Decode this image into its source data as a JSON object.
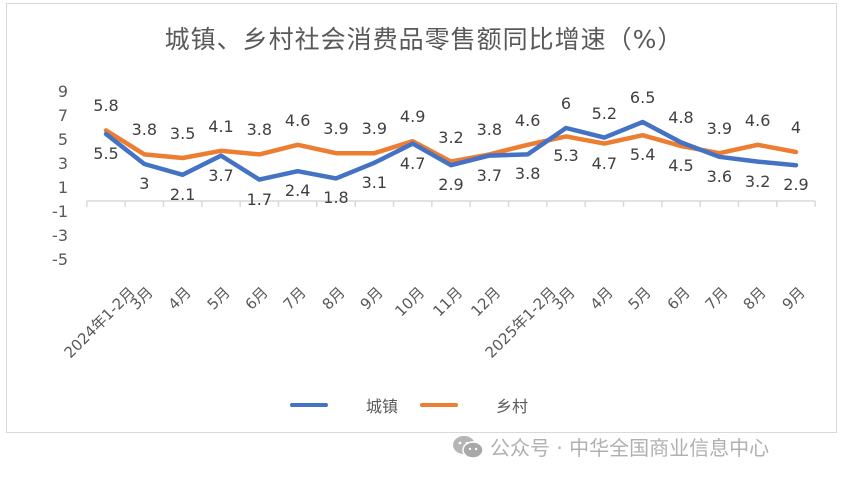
{
  "chart_data": {
    "type": "line",
    "title": "城镇、乡村社会消费品零售额同比增速（%）",
    "xlabel": "",
    "ylabel": "",
    "ylim": [
      -5,
      9
    ],
    "yticks": [
      "9",
      "7",
      "5",
      "3",
      "1",
      "-1",
      "-3",
      "-5"
    ],
    "grid": false,
    "legend_position": "bottom",
    "categories": [
      "2024年1-2月",
      "3月",
      "4月",
      "5月",
      "6月",
      "7月",
      "8月",
      "9月",
      "10月",
      "11月",
      "12月",
      "2025年1-2月",
      "3月",
      "4月",
      "5月",
      "6月",
      "7月",
      "8月",
      "9月"
    ],
    "series": [
      {
        "name": "城镇",
        "color": "#4472C4",
        "values": [
          5.5,
          3,
          2.1,
          3.7,
          1.7,
          2.4,
          1.8,
          3.1,
          4.7,
          2.9,
          3.7,
          3.8,
          6,
          5.2,
          6.5,
          4.8,
          3.6,
          3.2,
          2.9
        ]
      },
      {
        "name": "乡村",
        "color": "#ED7D31",
        "values": [
          5.8,
          3.8,
          3.5,
          4.1,
          3.8,
          4.6,
          3.9,
          3.9,
          4.9,
          3.2,
          3.8,
          4.6,
          5.3,
          4.7,
          5.4,
          4.5,
          3.9,
          4.6,
          4
        ]
      }
    ]
  },
  "legend": {
    "urban": "城镇",
    "rural": "乡村"
  },
  "watermark": "公众号 · 中华全国商业信息中心"
}
